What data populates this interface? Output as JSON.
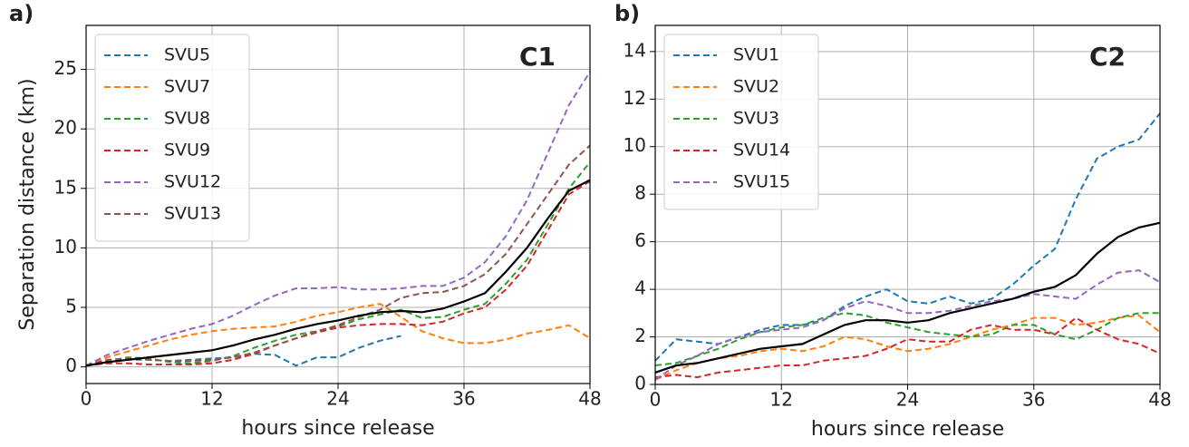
{
  "chart_data": [
    {
      "type": "line",
      "panel_label": "a)",
      "annotation": "C1",
      "xlabel": "hours since release",
      "ylabel": "Separation distance (km)",
      "x": [
        0,
        2,
        4,
        6,
        8,
        10,
        12,
        14,
        16,
        18,
        20,
        22,
        24,
        26,
        28,
        30,
        32,
        34,
        36,
        38,
        40,
        42,
        44,
        46,
        48
      ],
      "xlim": [
        0,
        48
      ],
      "xticks": [
        0,
        12,
        24,
        36,
        48
      ],
      "ylim": [
        -1.4,
        28.7
      ],
      "yticks": [
        0,
        5,
        10,
        15,
        20,
        25
      ],
      "grid": true,
      "legend": "upper left",
      "series": [
        {
          "name": "SVU5",
          "color": "#1f77b4",
          "linestyle": "dashed",
          "values": [
            0.1,
            0.4,
            0.6,
            0.6,
            0.5,
            0.6,
            0.7,
            0.8,
            1.1,
            1.0,
            0.1,
            0.8,
            0.8,
            1.6,
            2.2,
            2.6,
            null,
            null,
            null,
            null,
            null,
            null,
            null,
            null,
            null
          ]
        },
        {
          "name": "SVU7",
          "color": "#ff7f0e",
          "linestyle": "dashed",
          "values": [
            0.1,
            0.8,
            1.3,
            1.8,
            2.3,
            2.7,
            3.0,
            3.2,
            3.3,
            3.4,
            3.8,
            4.3,
            4.6,
            5.0,
            5.3,
            4.2,
            3.0,
            2.4,
            2.0,
            2.0,
            2.3,
            2.8,
            3.1,
            3.5,
            2.4
          ]
        },
        {
          "name": "SVU8",
          "color": "#2ca02c",
          "linestyle": "dashed",
          "values": [
            0.1,
            0.5,
            0.8,
            0.7,
            0.4,
            0.3,
            0.5,
            0.9,
            1.6,
            2.2,
            2.7,
            3.0,
            3.4,
            4.0,
            4.4,
            4.8,
            4.1,
            4.2,
            4.8,
            5.3,
            7.0,
            9.0,
            12.0,
            15.0,
            17.2
          ]
        },
        {
          "name": "SVU9",
          "color": "#d62728",
          "linestyle": "dashed",
          "values": [
            0.1,
            0.3,
            0.3,
            0.2,
            0.2,
            0.2,
            0.3,
            0.6,
            1.1,
            1.8,
            2.4,
            2.9,
            3.3,
            3.5,
            3.6,
            3.6,
            3.5,
            3.8,
            4.5,
            5.0,
            6.5,
            8.5,
            11.5,
            14.5,
            15.6
          ]
        },
        {
          "name": "SVU12",
          "color": "#9467bd",
          "linestyle": "dashed",
          "values": [
            0.1,
            1.0,
            1.6,
            2.2,
            2.7,
            3.2,
            3.6,
            4.3,
            5.2,
            6.0,
            6.6,
            6.6,
            6.7,
            6.5,
            6.5,
            6.6,
            6.8,
            6.8,
            7.5,
            8.8,
            11.0,
            14.0,
            18.0,
            22.0,
            24.8
          ]
        },
        {
          "name": "SVU13",
          "color": "#8c564b",
          "linestyle": "dashed",
          "values": [
            0.1,
            0.6,
            0.7,
            0.6,
            0.5,
            0.5,
            0.6,
            0.8,
            1.2,
            1.8,
            2.4,
            3.0,
            3.5,
            4.2,
            4.8,
            5.8,
            6.2,
            6.3,
            6.8,
            7.8,
            9.5,
            12.0,
            14.5,
            17.0,
            18.6
          ]
        },
        {
          "color": "#000000",
          "linestyle": "solid",
          "values": [
            0.1,
            0.4,
            0.6,
            0.8,
            1.0,
            1.2,
            1.4,
            1.8,
            2.3,
            2.7,
            3.2,
            3.6,
            3.9,
            4.3,
            4.6,
            4.7,
            4.6,
            4.9,
            5.5,
            6.2,
            8.0,
            10.0,
            12.5,
            14.8,
            15.7
          ]
        }
      ]
    },
    {
      "type": "line",
      "panel_label": "b)",
      "annotation": "C2",
      "xlabel": "hours since release",
      "x": [
        0,
        2,
        4,
        6,
        8,
        10,
        12,
        14,
        16,
        18,
        20,
        22,
        24,
        26,
        28,
        30,
        32,
        34,
        36,
        38,
        40,
        42,
        44,
        46,
        48
      ],
      "xlim": [
        0,
        48
      ],
      "xticks": [
        0,
        12,
        24,
        36,
        48
      ],
      "ylim": [
        0,
        15.1
      ],
      "yticks": [
        0,
        2,
        4,
        6,
        8,
        10,
        12,
        14
      ],
      "grid": true,
      "legend": "upper left",
      "series": [
        {
          "name": "SVU1",
          "color": "#1f77b4",
          "linestyle": "dashed",
          "values": [
            1.0,
            1.9,
            1.8,
            1.7,
            2.0,
            2.3,
            2.5,
            2.5,
            2.7,
            3.3,
            3.7,
            4.0,
            3.5,
            3.4,
            3.7,
            3.4,
            3.6,
            4.2,
            5.0,
            5.7,
            7.8,
            9.5,
            10.0,
            10.3,
            11.4
          ]
        },
        {
          "name": "SVU2",
          "color": "#ff7f0e",
          "linestyle": "dashed",
          "values": [
            0.2,
            0.6,
            0.9,
            1.1,
            1.2,
            1.4,
            1.5,
            1.4,
            1.6,
            2.0,
            1.9,
            1.6,
            1.4,
            1.5,
            1.7,
            2.0,
            2.3,
            2.5,
            2.8,
            2.8,
            2.5,
            2.6,
            2.8,
            2.9,
            2.2
          ]
        },
        {
          "name": "SVU3",
          "color": "#2ca02c",
          "linestyle": "dashed",
          "values": [
            0.8,
            0.9,
            1.2,
            1.5,
            1.9,
            2.2,
            2.4,
            2.5,
            2.8,
            3.0,
            2.9,
            2.6,
            2.4,
            2.2,
            2.1,
            2.0,
            2.1,
            2.5,
            2.5,
            2.1,
            1.9,
            2.3,
            2.8,
            3.0,
            3.0
          ]
        },
        {
          "name": "SVU14",
          "color": "#d62728",
          "linestyle": "dashed",
          "values": [
            0.3,
            0.4,
            0.3,
            0.5,
            0.6,
            0.7,
            0.8,
            0.8,
            1.0,
            1.1,
            1.2,
            1.5,
            1.9,
            1.8,
            1.8,
            2.3,
            2.5,
            2.3,
            2.3,
            2.1,
            2.8,
            2.3,
            1.9,
            1.7,
            1.3
          ]
        },
        {
          "name": "SVU15",
          "color": "#9467bd",
          "linestyle": "dashed",
          "values": [
            0.2,
            0.8,
            1.2,
            1.7,
            2.0,
            2.2,
            2.3,
            2.4,
            2.7,
            3.2,
            3.5,
            3.3,
            3.0,
            3.0,
            3.1,
            3.3,
            3.5,
            3.6,
            3.8,
            3.7,
            3.6,
            4.2,
            4.7,
            4.8,
            4.3
          ]
        },
        {
          "color": "#000000",
          "linestyle": "solid",
          "values": [
            0.5,
            0.8,
            0.9,
            1.1,
            1.3,
            1.5,
            1.6,
            1.7,
            2.1,
            2.5,
            2.7,
            2.7,
            2.6,
            2.7,
            3.0,
            3.2,
            3.4,
            3.6,
            3.9,
            4.1,
            4.6,
            5.5,
            6.2,
            6.6,
            6.8
          ]
        }
      ]
    }
  ]
}
